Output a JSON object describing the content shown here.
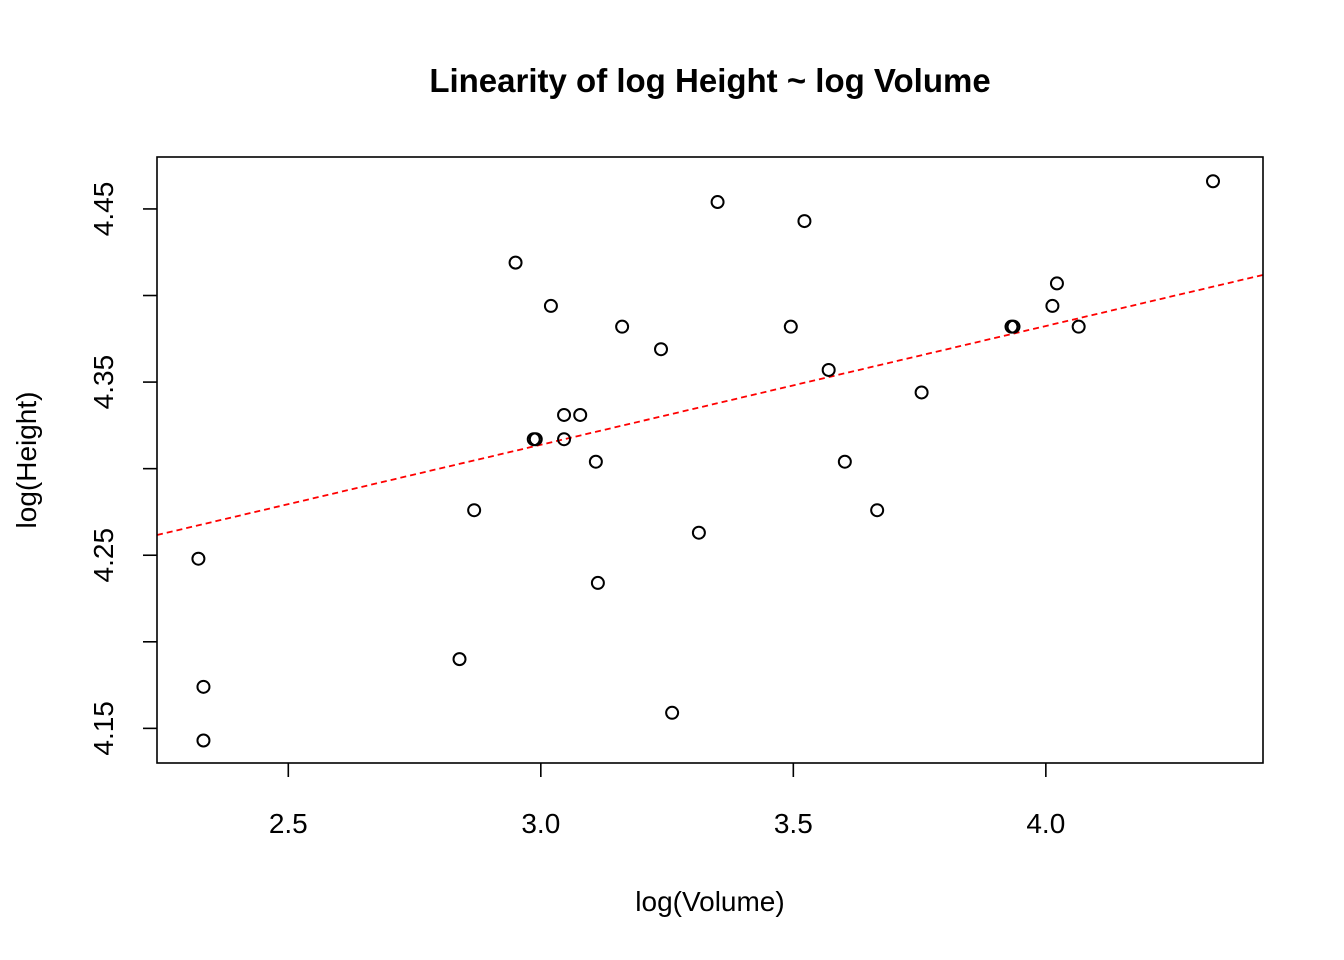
{
  "chart_data": {
    "type": "scatter",
    "title": "Linearity of log Height ~ log Volume",
    "xlabel": "log(Volume)",
    "ylabel": "log(Height)",
    "xlim": [
      2.24,
      4.43
    ],
    "ylim": [
      4.13,
      4.48
    ],
    "x_ticks": [
      2.5,
      3.0,
      3.5,
      4.0
    ],
    "x_tick_labels": [
      "2.5",
      "3.0",
      "3.5",
      "4.0"
    ],
    "y_ticks": [
      4.15,
      4.2,
      4.25,
      4.3,
      4.35,
      4.4,
      4.45
    ],
    "y_tick_labels": [
      "4.15",
      "",
      "4.25",
      "",
      "4.35",
      "",
      "4.45"
    ],
    "grid": false,
    "point_color": "#000000",
    "fit_line": {
      "color": "#ff0000",
      "style": "dashed",
      "intercept": 4.108,
      "slope": 0.0686
    },
    "points": [
      {
        "x": 2.332,
        "y": 4.143
      },
      {
        "x": 2.332,
        "y": 4.174
      },
      {
        "x": 2.322,
        "y": 4.248
      },
      {
        "x": 2.839,
        "y": 4.19
      },
      {
        "x": 2.868,
        "y": 4.276
      },
      {
        "x": 2.986,
        "y": 4.317
      },
      {
        "x": 3.02,
        "y": 4.394
      },
      {
        "x": 2.95,
        "y": 4.419
      },
      {
        "x": 3.046,
        "y": 4.317
      },
      {
        "x": 2.99,
        "y": 4.317
      },
      {
        "x": 3.046,
        "y": 4.331
      },
      {
        "x": 3.078,
        "y": 4.331
      },
      {
        "x": 3.109,
        "y": 4.304
      },
      {
        "x": 3.113,
        "y": 4.234
      },
      {
        "x": 3.161,
        "y": 4.382
      },
      {
        "x": 3.238,
        "y": 4.369
      },
      {
        "x": 3.26,
        "y": 4.159
      },
      {
        "x": 3.313,
        "y": 4.263
      },
      {
        "x": 3.35,
        "y": 4.454
      },
      {
        "x": 3.495,
        "y": 4.382
      },
      {
        "x": 3.522,
        "y": 4.443
      },
      {
        "x": 3.57,
        "y": 4.357
      },
      {
        "x": 3.602,
        "y": 4.304
      },
      {
        "x": 3.666,
        "y": 4.276
      },
      {
        "x": 3.754,
        "y": 4.344
      },
      {
        "x": 3.932,
        "y": 4.382
      },
      {
        "x": 3.936,
        "y": 4.382
      },
      {
        "x": 4.013,
        "y": 4.394
      },
      {
        "x": 4.022,
        "y": 4.407
      },
      {
        "x": 4.065,
        "y": 4.382
      },
      {
        "x": 4.331,
        "y": 4.466
      }
    ]
  }
}
